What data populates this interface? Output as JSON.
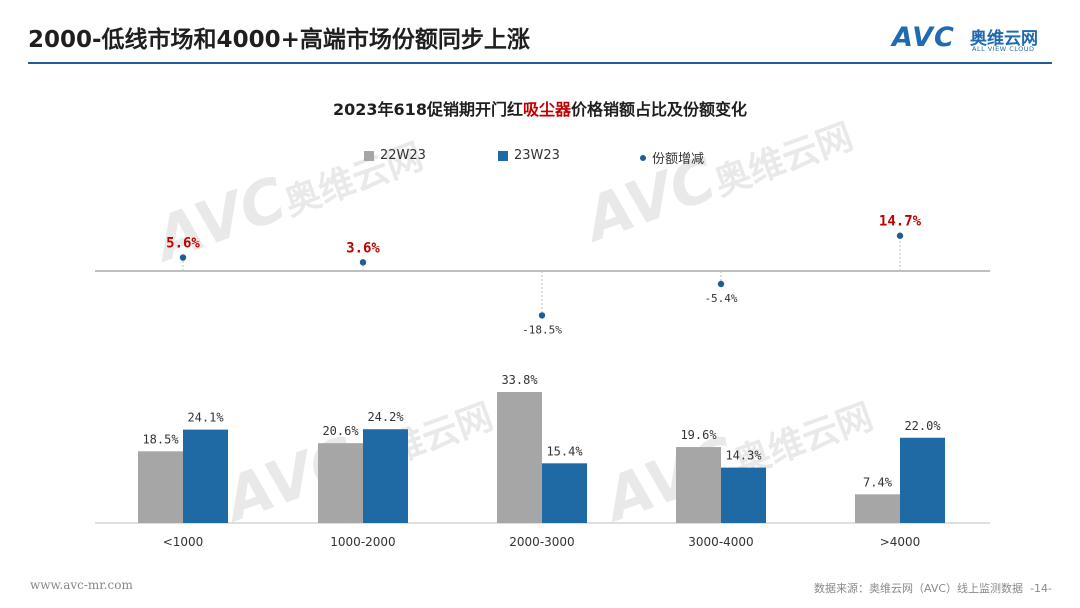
{
  "header": {
    "title": "2000-低线市场和4000+高端市场份额同步上涨",
    "logo_text": "AVC",
    "logo_cn": "奥维云网",
    "logo_en": "ALL VIEW CLOUD"
  },
  "watermark": {
    "big": "AVC",
    "cn": "奥维云网",
    "en": "ALL VIEW CLOUD"
  },
  "chart_title": {
    "prefix": "2023年618促销期开门红",
    "highlight": "吸尘器",
    "suffix": "价格销额占比及份额变化"
  },
  "colors": {
    "series1": "#a6a6a6",
    "series2": "#1f6aa5",
    "dot": "#1f5c99",
    "highlight": "#c00000",
    "rule": "#1f5c99"
  },
  "chart_data": {
    "type": "bar",
    "categories": [
      "<1000",
      "1000-2000",
      "2000-3000",
      "3000-4000",
      ">4000"
    ],
    "series": [
      {
        "name": "22W23",
        "values": [
          18.5,
          20.6,
          33.8,
          19.6,
          7.4
        ],
        "labels": [
          "18.5%",
          "20.6%",
          "33.8%",
          "19.6%",
          "7.4%"
        ]
      },
      {
        "name": "23W23",
        "values": [
          24.1,
          24.2,
          15.4,
          14.3,
          22.0
        ],
        "labels": [
          "24.1%",
          "24.2%",
          "15.4%",
          "14.3%",
          "22.0%"
        ]
      }
    ],
    "share_change": {
      "name": "份额增减",
      "values": [
        5.6,
        3.6,
        -18.5,
        -5.4,
        14.7
      ],
      "labels": [
        "5.6%",
        "3.6%",
        "-18.5%",
        "-5.4%",
        "14.7%"
      ],
      "highlighted": [
        true,
        true,
        false,
        false,
        true
      ]
    },
    "legend_position": "top",
    "grid": false
  },
  "footer": {
    "website": "www.avc-mr.com",
    "source": "数据来源：奥维云网（AVC）线上监测数据",
    "page": "-14-"
  }
}
